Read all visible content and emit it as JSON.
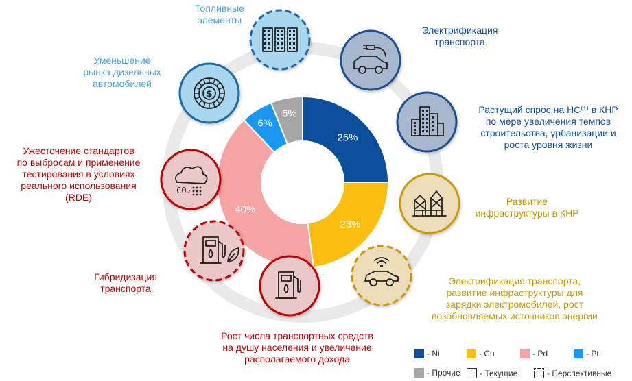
{
  "chart_data": {
    "type": "pie",
    "categories": [
      "Ni",
      "Cu",
      "Pd",
      "Pt",
      "Прочие"
    ],
    "values": [
      25,
      23,
      40,
      6,
      6
    ],
    "value_labels": [
      "25%",
      "23%",
      "40%",
      "6%",
      "6%"
    ],
    "colors": [
      "#0b4f9c",
      "#fbbd0f",
      "#f5a3a3",
      "#1a98f0",
      "#a6a6a6"
    ]
  },
  "drivers": [
    {
      "text": "Топливные\nэлементы",
      "icon": "building-blocks-icon",
      "color": "#4aa6dc",
      "border": "perspective"
    },
    {
      "text": "Электрификация\nтранспорта",
      "icon": "electric-car-icon",
      "color": "#0b4f9c",
      "border": "current"
    },
    {
      "text": "Растущий спрос на НС⁽¹⁾ в КНР\nпо мере увеличения темпов\nстроительства, урбанизации и\nроста уровня жизни",
      "icon": "city-buildings-icon",
      "color": "#0b4f9c",
      "border": "current"
    },
    {
      "text": "Развитие\nинфраструктуры в КНР",
      "icon": "construction-icon",
      "color": "#c79a00",
      "border": "current"
    },
    {
      "text": "Электрификация транспорта,\nразвитие инфраструктуры для\nзарядки электромобилей, рост\nвозобновляемых источников энергии",
      "icon": "connected-car-icon",
      "color": "#c79a00",
      "border": "perspective"
    },
    {
      "text": "Рост числа транспортных средств\nна душу населения и увеличение\nрасполагаемого дохода",
      "icon": "fuel-pump-icon",
      "color": "#c00000",
      "border": "current"
    },
    {
      "text": "Гибридизация\nтранспорта",
      "icon": "hybrid-pump-icon",
      "color": "#c00000",
      "border": "perspective"
    },
    {
      "text": "Ужесточение стандартов\nпо выбросам и применение\nтестирования в условиях\nреального использования\n(RDE)",
      "icon": "co2-cloud-icon",
      "color": "#c00000",
      "border": "current"
    },
    {
      "text": "Уменьшение\nрынка дизельных\nавтомобилей",
      "icon": "dollar-coin-icon",
      "color": "#4aa6dc",
      "border": "current"
    }
  ],
  "legend": {
    "ni": "- Ni",
    "cu": "- Cu",
    "pd": "- Pd",
    "pt": "- Pt",
    "other": "- Прочие",
    "current": "- Текущие",
    "perspective": "- Перспективные"
  }
}
